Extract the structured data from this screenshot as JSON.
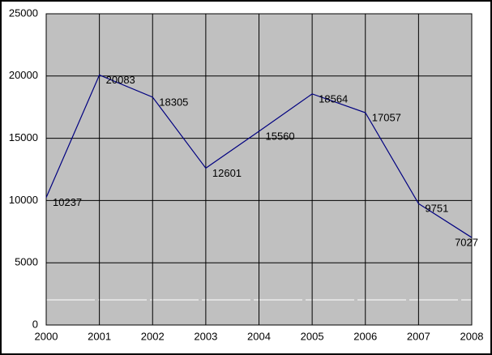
{
  "chart_data": {
    "type": "line",
    "x": [
      2000,
      2001,
      2002,
      2003,
      2004,
      2005,
      2006,
      2007,
      2008
    ],
    "series": [
      {
        "color": "#000080",
        "values": [
          10237,
          20083,
          18305,
          12601,
          15560,
          18564,
          17057,
          9751,
          7027
        ]
      }
    ],
    "xlim": [
      2000,
      2008
    ],
    "xticks": [
      2000,
      2001,
      2002,
      2003,
      2004,
      2005,
      2006,
      2007,
      2008
    ],
    "ylim": [
      0,
      25000
    ],
    "yticks": [
      0,
      5000,
      10000,
      15000,
      20000,
      25000
    ],
    "grid": true,
    "data_labels": true
  }
}
